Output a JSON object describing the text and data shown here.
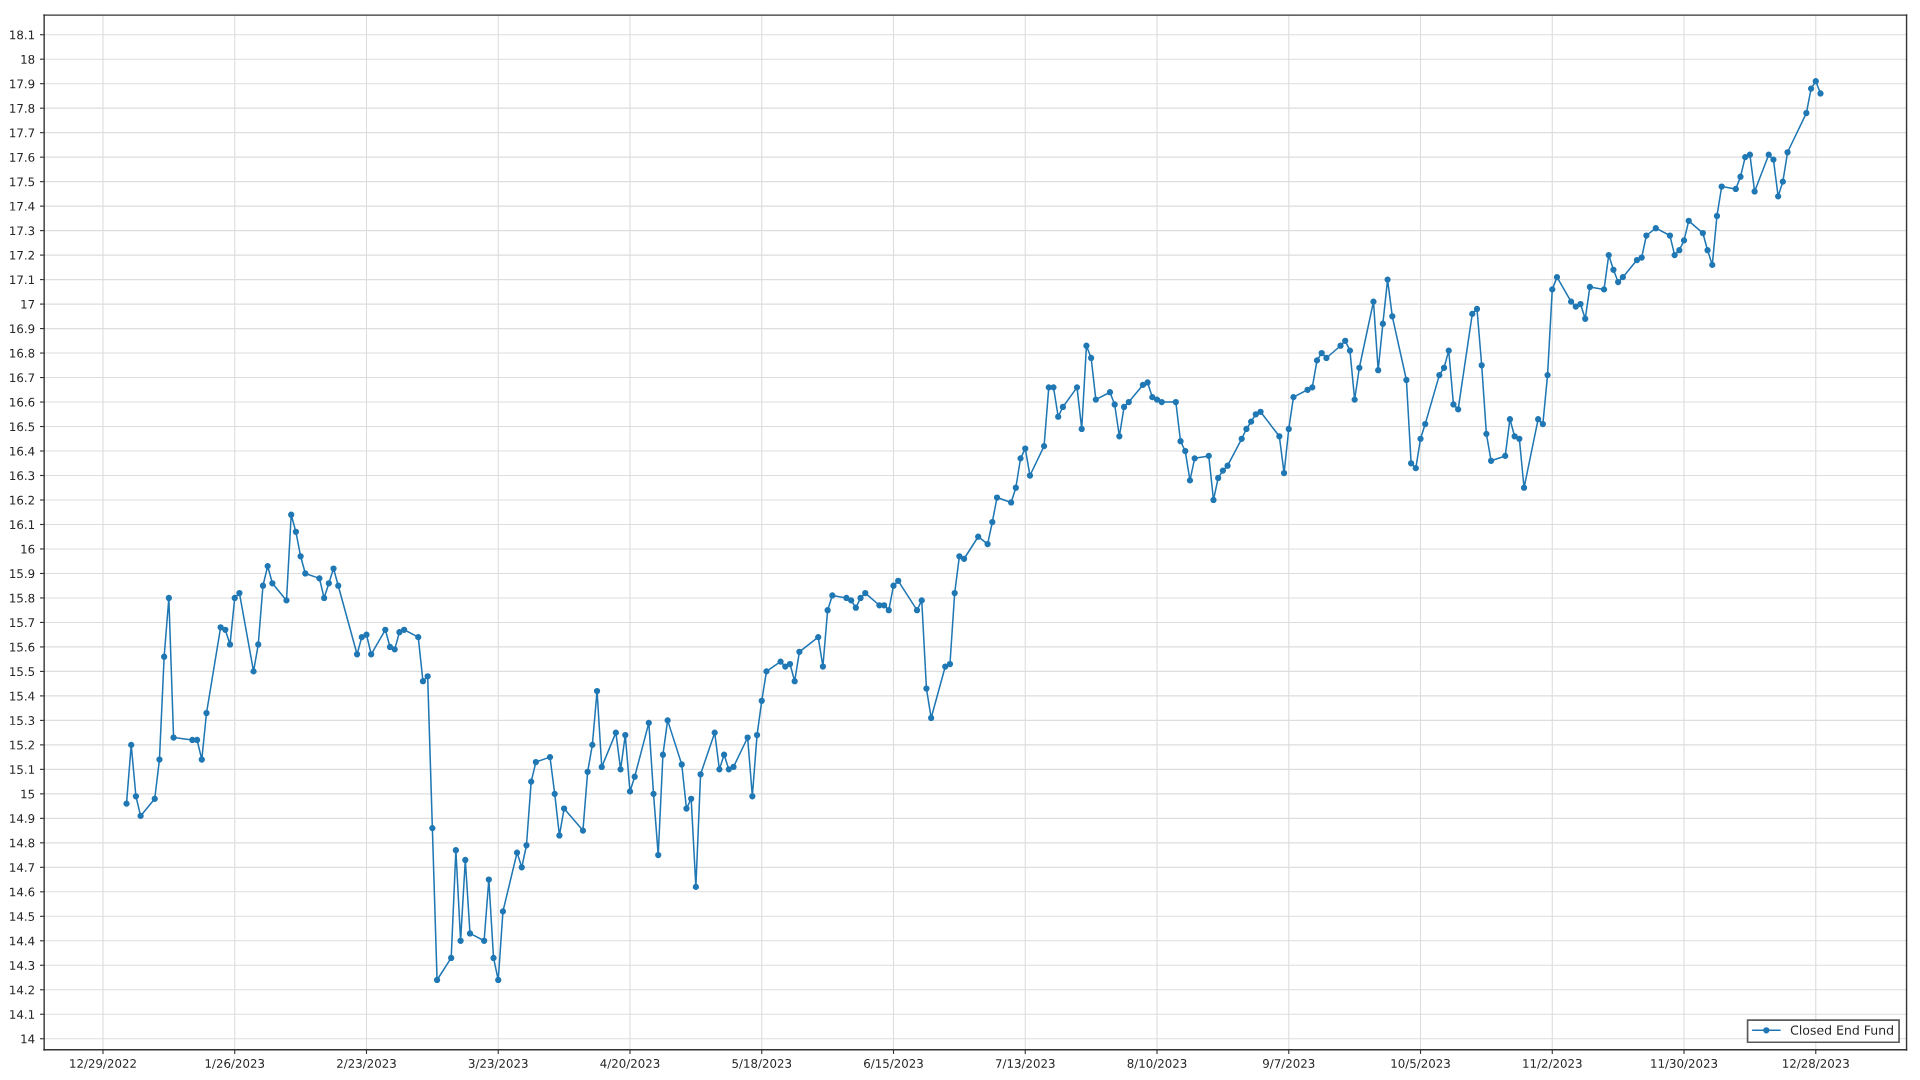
{
  "chart_data": {
    "type": "line",
    "x": [
      "2023-01-03",
      "2023-01-04",
      "2023-01-05",
      "2023-01-06",
      "2023-01-09",
      "2023-01-10",
      "2023-01-11",
      "2023-01-12",
      "2023-01-13",
      "2023-01-17",
      "2023-01-18",
      "2023-01-19",
      "2023-01-20",
      "2023-01-23",
      "2023-01-24",
      "2023-01-25",
      "2023-01-26",
      "2023-01-27",
      "2023-01-30",
      "2023-01-31",
      "2023-02-01",
      "2023-02-02",
      "2023-02-03",
      "2023-02-06",
      "2023-02-07",
      "2023-02-08",
      "2023-02-09",
      "2023-02-10",
      "2023-02-13",
      "2023-02-14",
      "2023-02-15",
      "2023-02-16",
      "2023-02-17",
      "2023-02-21",
      "2023-02-22",
      "2023-02-23",
      "2023-02-24",
      "2023-02-27",
      "2023-02-28",
      "2023-03-01",
      "2023-03-02",
      "2023-03-03",
      "2023-03-06",
      "2023-03-07",
      "2023-03-08",
      "2023-03-09",
      "2023-03-10",
      "2023-03-13",
      "2023-03-14",
      "2023-03-15",
      "2023-03-16",
      "2023-03-17",
      "2023-03-20",
      "2023-03-21",
      "2023-03-22",
      "2023-03-23",
      "2023-03-24",
      "2023-03-27",
      "2023-03-28",
      "2023-03-29",
      "2023-03-30",
      "2023-03-31",
      "2023-04-03",
      "2023-04-04",
      "2023-04-05",
      "2023-04-06",
      "2023-04-10",
      "2023-04-11",
      "2023-04-12",
      "2023-04-13",
      "2023-04-14",
      "2023-04-17",
      "2023-04-18",
      "2023-04-19",
      "2023-04-20",
      "2023-04-21",
      "2023-04-24",
      "2023-04-25",
      "2023-04-26",
      "2023-04-27",
      "2023-04-28",
      "2023-05-01",
      "2023-05-02",
      "2023-05-03",
      "2023-05-04",
      "2023-05-05",
      "2023-05-08",
      "2023-05-09",
      "2023-05-10",
      "2023-05-11",
      "2023-05-12",
      "2023-05-15",
      "2023-05-16",
      "2023-05-17",
      "2023-05-18",
      "2023-05-19",
      "2023-05-22",
      "2023-05-23",
      "2023-05-24",
      "2023-05-25",
      "2023-05-26",
      "2023-05-30",
      "2023-05-31",
      "2023-06-01",
      "2023-06-02",
      "2023-06-05",
      "2023-06-06",
      "2023-06-07",
      "2023-06-08",
      "2023-06-09",
      "2023-06-12",
      "2023-06-13",
      "2023-06-14",
      "2023-06-15",
      "2023-06-16",
      "2023-06-20",
      "2023-06-21",
      "2023-06-22",
      "2023-06-23",
      "2023-06-26",
      "2023-06-27",
      "2023-06-28",
      "2023-06-29",
      "2023-06-30",
      "2023-07-03",
      "2023-07-05",
      "2023-07-06",
      "2023-07-07",
      "2023-07-10",
      "2023-07-11",
      "2023-07-12",
      "2023-07-13",
      "2023-07-14",
      "2023-07-17",
      "2023-07-18",
      "2023-07-19",
      "2023-07-20",
      "2023-07-21",
      "2023-07-24",
      "2023-07-25",
      "2023-07-26",
      "2023-07-27",
      "2023-07-28",
      "2023-07-31",
      "2023-08-01",
      "2023-08-02",
      "2023-08-03",
      "2023-08-04",
      "2023-08-07",
      "2023-08-08",
      "2023-08-09",
      "2023-08-10",
      "2023-08-11",
      "2023-08-14",
      "2023-08-15",
      "2023-08-16",
      "2023-08-17",
      "2023-08-18",
      "2023-08-21",
      "2023-08-22",
      "2023-08-23",
      "2023-08-24",
      "2023-08-25",
      "2023-08-28",
      "2023-08-29",
      "2023-08-30",
      "2023-08-31",
      "2023-09-01",
      "2023-09-05",
      "2023-09-06",
      "2023-09-07",
      "2023-09-08",
      "2023-09-11",
      "2023-09-12",
      "2023-09-13",
      "2023-09-14",
      "2023-09-15",
      "2023-09-18",
      "2023-09-19",
      "2023-09-20",
      "2023-09-21",
      "2023-09-22",
      "2023-09-25",
      "2023-09-26",
      "2023-09-27",
      "2023-09-28",
      "2023-09-29",
      "2023-10-02",
      "2023-10-03",
      "2023-10-04",
      "2023-10-05",
      "2023-10-06",
      "2023-10-09",
      "2023-10-10",
      "2023-10-11",
      "2023-10-12",
      "2023-10-13",
      "2023-10-16",
      "2023-10-17",
      "2023-10-18",
      "2023-10-19",
      "2023-10-20",
      "2023-10-23",
      "2023-10-24",
      "2023-10-25",
      "2023-10-26",
      "2023-10-27",
      "2023-10-30",
      "2023-10-31",
      "2023-11-01",
      "2023-11-02",
      "2023-11-03",
      "2023-11-06",
      "2023-11-07",
      "2023-11-08",
      "2023-11-09",
      "2023-11-10",
      "2023-11-13",
      "2023-11-14",
      "2023-11-15",
      "2023-11-16",
      "2023-11-17",
      "2023-11-20",
      "2023-11-21",
      "2023-11-22",
      "2023-11-24",
      "2023-11-27",
      "2023-11-28",
      "2023-11-29",
      "2023-11-30",
      "2023-12-01",
      "2023-12-04",
      "2023-12-05",
      "2023-12-06",
      "2023-12-07",
      "2023-12-08",
      "2023-12-11",
      "2023-12-12",
      "2023-12-13",
      "2023-12-14",
      "2023-12-15",
      "2023-12-18",
      "2023-12-19",
      "2023-12-20",
      "2023-12-21",
      "2023-12-22",
      "2023-12-26",
      "2023-12-27",
      "2023-12-28",
      "2023-12-29"
    ],
    "series": [
      {
        "name": "Closed End Fund",
        "color": "#1f77b4",
        "values": [
          14.96,
          15.2,
          14.99,
          14.91,
          14.98,
          15.14,
          15.56,
          15.8,
          15.23,
          15.22,
          15.22,
          15.14,
          15.33,
          15.68,
          15.67,
          15.61,
          15.8,
          15.82,
          15.5,
          15.61,
          15.85,
          15.93,
          15.86,
          15.79,
          16.14,
          16.07,
          15.97,
          15.9,
          15.88,
          15.8,
          15.86,
          15.92,
          15.85,
          15.57,
          15.64,
          15.65,
          15.57,
          15.67,
          15.6,
          15.59,
          15.66,
          15.67,
          15.64,
          15.46,
          15.48,
          14.86,
          14.24,
          14.33,
          14.77,
          14.4,
          14.73,
          14.43,
          14.4,
          14.65,
          14.33,
          14.24,
          14.52,
          14.76,
          14.7,
          14.79,
          15.05,
          15.13,
          15.15,
          15.0,
          14.83,
          14.94,
          14.85,
          15.09,
          15.2,
          15.42,
          15.11,
          15.25,
          15.1,
          15.24,
          15.01,
          15.07,
          15.29,
          15.0,
          14.75,
          15.16,
          15.3,
          15.12,
          14.94,
          14.98,
          14.62,
          15.08,
          15.25,
          15.1,
          15.16,
          15.1,
          15.11,
          15.23,
          14.99,
          15.24,
          15.38,
          15.5,
          15.54,
          15.52,
          15.53,
          15.46,
          15.58,
          15.64,
          15.52,
          15.75,
          15.81,
          15.8,
          15.79,
          15.76,
          15.8,
          15.82,
          15.77,
          15.77,
          15.75,
          15.85,
          15.87,
          15.75,
          15.79,
          15.43,
          15.31,
          15.52,
          15.53,
          15.82,
          15.97,
          15.96,
          16.05,
          16.02,
          16.11,
          16.21,
          16.19,
          16.25,
          16.37,
          16.41,
          16.3,
          16.42,
          16.66,
          16.66,
          16.54,
          16.58,
          16.66,
          16.49,
          16.83,
          16.78,
          16.61,
          16.64,
          16.59,
          16.46,
          16.58,
          16.6,
          16.67,
          16.68,
          16.62,
          16.61,
          16.6,
          16.6,
          16.44,
          16.4,
          16.28,
          16.37,
          16.38,
          16.2,
          16.29,
          16.32,
          16.34,
          16.45,
          16.49,
          16.52,
          16.55,
          16.56,
          16.46,
          16.31,
          16.49,
          16.62,
          16.65,
          16.66,
          16.77,
          16.8,
          16.78,
          16.83,
          16.85,
          16.81,
          16.61,
          16.74,
          17.01,
          16.73,
          16.92,
          17.1,
          16.95,
          16.69,
          16.35,
          16.33,
          16.45,
          16.51,
          16.71,
          16.74,
          16.81,
          16.59,
          16.57,
          16.96,
          16.98,
          16.75,
          16.47,
          16.36,
          16.38,
          16.53,
          16.46,
          16.45,
          16.25,
          16.53,
          16.51,
          16.71,
          17.06,
          17.11,
          17.01,
          16.99,
          17.0,
          16.94,
          17.07,
          17.06,
          17.2,
          17.14,
          17.09,
          17.11,
          17.18,
          17.19,
          17.28,
          17.31,
          17.28,
          17.2,
          17.22,
          17.26,
          17.34,
          17.29,
          17.22,
          17.16,
          17.36,
          17.48,
          17.47,
          17.52,
          17.6,
          17.61,
          17.46,
          17.61,
          17.59,
          17.44,
          17.5,
          17.62,
          17.78,
          17.88,
          17.91,
          17.86
        ]
      }
    ],
    "xlim": [
      "2022-12-16T12:00",
      "2024-01-16T07:00"
    ],
    "xticks": [
      {
        "value": "2022-12-29",
        "label": "12/29/2022"
      },
      {
        "value": "2023-01-26",
        "label": "1/26/2023"
      },
      {
        "value": "2023-02-23",
        "label": "2/23/2023"
      },
      {
        "value": "2023-03-23",
        "label": "3/23/2023"
      },
      {
        "value": "2023-04-20",
        "label": "4/20/2023"
      },
      {
        "value": "2023-05-18",
        "label": "5/18/2023"
      },
      {
        "value": "2023-06-15",
        "label": "6/15/2023"
      },
      {
        "value": "2023-07-13",
        "label": "7/13/2023"
      },
      {
        "value": "2023-08-10",
        "label": "8/10/2023"
      },
      {
        "value": "2023-09-07",
        "label": "9/7/2023"
      },
      {
        "value": "2023-10-05",
        "label": "10/5/2023"
      },
      {
        "value": "2023-11-02",
        "label": "11/2/2023"
      },
      {
        "value": "2023-11-30",
        "label": "11/30/2023"
      },
      {
        "value": "2023-12-28",
        "label": "12/28/2023"
      }
    ],
    "ylim": [
      13.955,
      18.18
    ],
    "yticks": [
      14,
      14.1,
      14.2,
      14.3,
      14.4,
      14.5,
      14.6,
      14.7,
      14.8,
      14.9,
      15,
      15.1,
      15.2,
      15.3,
      15.4,
      15.5,
      15.6,
      15.7,
      15.8,
      15.9,
      16,
      16.1,
      16.2,
      16.3,
      16.4,
      16.5,
      16.6,
      16.7,
      16.8,
      16.9,
      17,
      17.1,
      17.2,
      17.3,
      17.4,
      17.5,
      17.6,
      17.7,
      17.8,
      17.9,
      18,
      18.1
    ],
    "grid": true,
    "legend": "bottom right",
    "marker": "circle",
    "line_style": "solid"
  }
}
